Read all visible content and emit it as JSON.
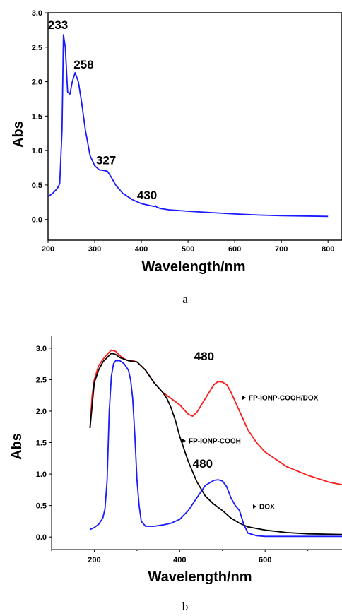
{
  "chart_data": [
    {
      "type": "line",
      "caption": "a",
      "xlabel": "Wavelength/nm",
      "ylabel": "Abs",
      "xlim": [
        200,
        830
      ],
      "ylim": [
        -0.3,
        3.0
      ],
      "xticks": [
        "200",
        "300",
        "400",
        "500",
        "600",
        "700",
        "800"
      ],
      "yticks": [
        "0.0",
        "0.5",
        "1.0",
        "1.5",
        "2.0",
        "2.5",
        "3.0"
      ],
      "series": [
        {
          "color": "#1a1aff",
          "x": [
            200,
            210,
            220,
            225,
            230,
            233,
            237,
            242,
            247,
            252,
            258,
            265,
            272,
            280,
            290,
            300,
            310,
            320,
            327,
            335,
            345,
            360,
            380,
            400,
            420,
            428,
            430,
            433,
            440,
            460,
            500,
            550,
            600,
            650,
            700,
            750,
            800
          ],
          "y": [
            0.33,
            0.38,
            0.45,
            0.52,
            1.3,
            2.68,
            2.5,
            1.85,
            1.82,
            2.0,
            2.13,
            2.0,
            1.7,
            1.3,
            0.93,
            0.78,
            0.72,
            0.71,
            0.7,
            0.62,
            0.5,
            0.38,
            0.29,
            0.23,
            0.2,
            0.19,
            0.2,
            0.18,
            0.16,
            0.14,
            0.12,
            0.1,
            0.08,
            0.065,
            0.055,
            0.05,
            0.045
          ]
        }
      ],
      "annotations": [
        {
          "text": "233",
          "x": 233,
          "y": 2.68
        },
        {
          "text": "258",
          "x": 258,
          "y": 2.13
        },
        {
          "text": "327",
          "x": 327,
          "y": 0.7
        },
        {
          "text": "430",
          "x": 430,
          "y": 0.2
        }
      ]
    },
    {
      "type": "line",
      "caption": "b",
      "xlabel": "Wavelength/nm",
      "ylabel": "Abs",
      "xlim": [
        100,
        780
      ],
      "ylim": [
        -0.2,
        3.2
      ],
      "xticks": [
        "200",
        "400",
        "600"
      ],
      "yticks": [
        "0.0",
        "0.5",
        "1.0",
        "1.5",
        "2.0",
        "2.5",
        "3.0"
      ],
      "series": [
        {
          "name": "FP-IONP-COOH/DOX",
          "color": "#ff1a1a",
          "x": [
            190,
            195,
            200,
            210,
            220,
            230,
            240,
            250,
            260,
            270,
            280,
            290,
            300,
            320,
            340,
            360,
            380,
            400,
            420,
            430,
            440,
            460,
            480,
            490,
            500,
            510,
            520,
            540,
            560,
            580,
            600,
            650,
            700,
            750,
            780
          ],
          "y": [
            1.73,
            2.25,
            2.5,
            2.72,
            2.82,
            2.9,
            2.97,
            2.95,
            2.88,
            2.83,
            2.8,
            2.8,
            2.78,
            2.65,
            2.45,
            2.3,
            2.2,
            2.1,
            1.95,
            1.92,
            1.98,
            2.2,
            2.42,
            2.47,
            2.46,
            2.42,
            2.3,
            2.0,
            1.7,
            1.5,
            1.35,
            1.12,
            0.98,
            0.87,
            0.83
          ]
        },
        {
          "name": "FP-IONP-COOH",
          "color": "#000000",
          "x": [
            190,
            200,
            210,
            220,
            240,
            250,
            260,
            280,
            300,
            320,
            340,
            360,
            370,
            380,
            390,
            400,
            420,
            440,
            460,
            480,
            500,
            520,
            540,
            560,
            600,
            650,
            700,
            780
          ],
          "y": [
            1.73,
            2.45,
            2.65,
            2.78,
            2.92,
            2.9,
            2.85,
            2.8,
            2.78,
            2.65,
            2.45,
            2.3,
            2.2,
            2.05,
            1.85,
            1.6,
            1.2,
            0.88,
            0.65,
            0.52,
            0.42,
            0.3,
            0.22,
            0.16,
            0.11,
            0.07,
            0.05,
            0.04
          ]
        },
        {
          "name": "DOX",
          "color": "#1a1aff",
          "x": [
            190,
            200,
            210,
            220,
            225,
            230,
            235,
            240,
            245,
            250,
            260,
            270,
            280,
            285,
            290,
            295,
            300,
            305,
            310,
            320,
            340,
            360,
            380,
            400,
            420,
            440,
            460,
            480,
            490,
            500,
            510,
            520,
            530,
            540,
            550,
            560,
            580,
            600,
            650,
            700,
            780
          ],
          "y": [
            0.12,
            0.15,
            0.2,
            0.3,
            0.45,
            0.9,
            2.0,
            2.55,
            2.75,
            2.8,
            2.8,
            2.75,
            2.65,
            2.5,
            2.2,
            1.6,
            0.9,
            0.5,
            0.25,
            0.17,
            0.17,
            0.19,
            0.22,
            0.28,
            0.42,
            0.62,
            0.82,
            0.9,
            0.91,
            0.89,
            0.8,
            0.62,
            0.5,
            0.42,
            0.2,
            0.06,
            0.02,
            0.01,
            0.01,
            0.01,
            0.01
          ]
        }
      ],
      "annotations": [
        {
          "text": "480",
          "x": 480,
          "y": 2.47
        },
        {
          "text": "480",
          "x": 480,
          "y": 0.91
        }
      ]
    }
  ]
}
